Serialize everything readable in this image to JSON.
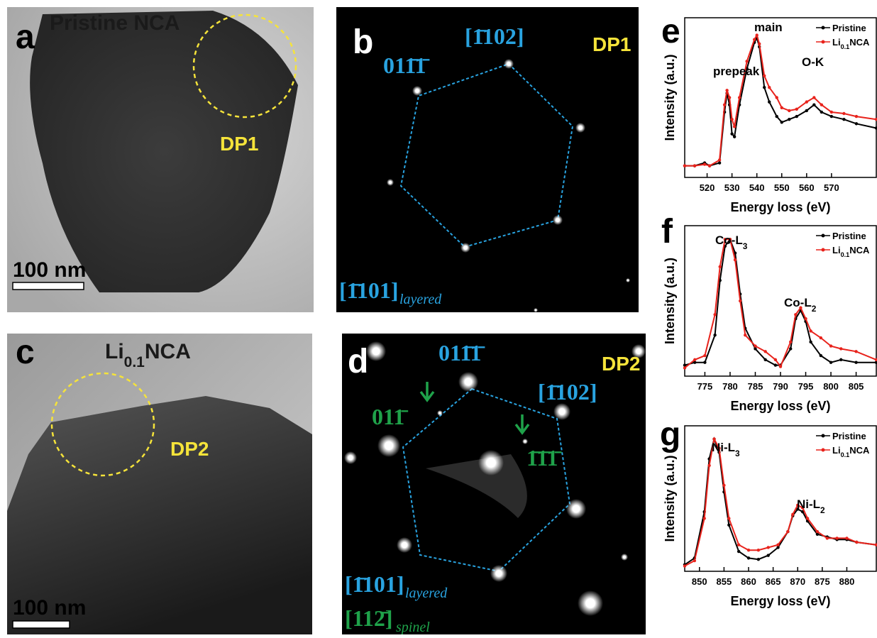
{
  "images": [
    {
      "letter": "a",
      "label": "Pristine NCA",
      "annotation": "DP1",
      "scale_bar": "100 nm"
    },
    {
      "letter": "b",
      "annotation": "DP1",
      "spot_labels": [
        "[1̄102]",
        "011̄1̄"
      ],
      "zone_axis": "[1̄101]",
      "zone_subscript": "layered"
    },
    {
      "letter": "c",
      "label": "Li0.1NCA",
      "annotation": "DP2",
      "scale_bar": "100 nm"
    },
    {
      "letter": "d",
      "annotation": "DP2",
      "spot_labels": [
        "011̄1̄",
        "[1̄102]"
      ],
      "spinel_labels": [
        "011̄",
        "1̄1̄1̄"
      ],
      "zone_axis": "[1̄101]",
      "zone_subscript": "layered",
      "spinel_zone_axis": "[112̄]",
      "spinel_zone_subscript": "spinel"
    }
  ],
  "chart_data": [
    {
      "type": "line",
      "panel_label": "e",
      "xlabel": "Energy loss (eV)",
      "ylabel": "Intensity (a.u.)",
      "annotations": [
        "prepeak",
        "main",
        "O-K"
      ],
      "x": [
        511,
        515,
        519,
        521,
        525,
        527,
        528,
        529,
        530,
        531,
        533,
        536,
        539,
        540,
        541,
        543,
        545,
        548,
        550,
        553,
        556,
        560,
        563,
        566,
        570,
        575,
        580,
        588
      ],
      "series": [
        {
          "name": "Pristine",
          "color": "#000000",
          "values": [
            0.08,
            0.08,
            0.1,
            0.08,
            0.1,
            0.45,
            0.58,
            0.5,
            0.3,
            0.28,
            0.5,
            0.75,
            0.93,
            0.96,
            0.9,
            0.62,
            0.52,
            0.42,
            0.38,
            0.4,
            0.42,
            0.46,
            0.5,
            0.45,
            0.42,
            0.4,
            0.37,
            0.34
          ]
        },
        {
          "name": "Li0.1NCA",
          "color": "#e8231c",
          "values": [
            0.08,
            0.08,
            0.09,
            0.08,
            0.12,
            0.5,
            0.6,
            0.55,
            0.4,
            0.35,
            0.55,
            0.8,
            0.95,
            0.98,
            0.92,
            0.7,
            0.62,
            0.55,
            0.48,
            0.46,
            0.47,
            0.52,
            0.55,
            0.5,
            0.45,
            0.44,
            0.42,
            0.4
          ]
        }
      ],
      "xlim": [
        511,
        588
      ],
      "xticks": [
        520,
        530,
        540,
        550,
        560,
        570
      ],
      "ylim": [
        0,
        1.1
      ]
    },
    {
      "type": "line",
      "panel_label": "f",
      "xlabel": "Energy loss (eV)",
      "ylabel": "Intensity (a.u.)",
      "annotations": [
        "Co-L3",
        "Co-L2"
      ],
      "x": [
        771,
        773,
        775,
        777,
        778,
        779,
        780,
        781,
        782,
        783,
        785,
        787,
        789,
        790,
        792,
        793,
        794,
        795,
        796,
        798,
        800,
        802,
        805,
        809
      ],
      "series": [
        {
          "name": "Pristine",
          "color": "#000000",
          "values": [
            0.08,
            0.1,
            0.1,
            0.3,
            0.7,
            0.95,
            1.0,
            0.9,
            0.6,
            0.35,
            0.2,
            0.12,
            0.08,
            0.08,
            0.2,
            0.42,
            0.48,
            0.4,
            0.25,
            0.15,
            0.1,
            0.12,
            0.1,
            0.1
          ]
        },
        {
          "name": "Li0.1NCA",
          "color": "#e8231c",
          "values": [
            0.06,
            0.12,
            0.15,
            0.45,
            0.8,
            1.0,
            1.0,
            0.85,
            0.55,
            0.3,
            0.22,
            0.18,
            0.12,
            0.07,
            0.25,
            0.45,
            0.5,
            0.42,
            0.33,
            0.28,
            0.22,
            0.2,
            0.18,
            0.12
          ]
        }
      ],
      "xlim": [
        771,
        809
      ],
      "xticks": [
        775,
        780,
        785,
        790,
        795,
        800,
        805
      ],
      "ylim": [
        0,
        1.1
      ]
    },
    {
      "type": "line",
      "panel_label": "g",
      "xlabel": "Energy loss (eV)",
      "ylabel": "Intensity (a.u.)",
      "annotations": [
        "Ni-L3",
        "Ni-L2"
      ],
      "x": [
        847,
        849,
        851,
        852,
        853,
        854,
        855,
        856,
        858,
        860,
        862,
        864,
        866,
        868,
        869,
        870,
        871,
        872,
        874,
        876,
        878,
        880,
        882,
        886
      ],
      "series": [
        {
          "name": "Pristine",
          "color": "#000000",
          "values": [
            0.05,
            0.1,
            0.45,
            0.85,
            1.0,
            0.9,
            0.6,
            0.35,
            0.15,
            0.1,
            0.09,
            0.12,
            0.18,
            0.3,
            0.42,
            0.47,
            0.45,
            0.38,
            0.28,
            0.26,
            0.24,
            0.24,
            0.22,
            0.2
          ]
        },
        {
          "name": "Li0.1NCA",
          "color": "#e8231c",
          "values": [
            0.04,
            0.08,
            0.4,
            0.8,
            1.0,
            0.93,
            0.65,
            0.4,
            0.2,
            0.16,
            0.16,
            0.18,
            0.2,
            0.3,
            0.43,
            0.5,
            0.48,
            0.4,
            0.3,
            0.25,
            0.25,
            0.25,
            0.22,
            0.2
          ]
        }
      ],
      "xlim": [
        847,
        886
      ],
      "xticks": [
        850,
        855,
        860,
        865,
        870,
        875,
        880
      ],
      "ylim": [
        0,
        1.1
      ]
    }
  ]
}
